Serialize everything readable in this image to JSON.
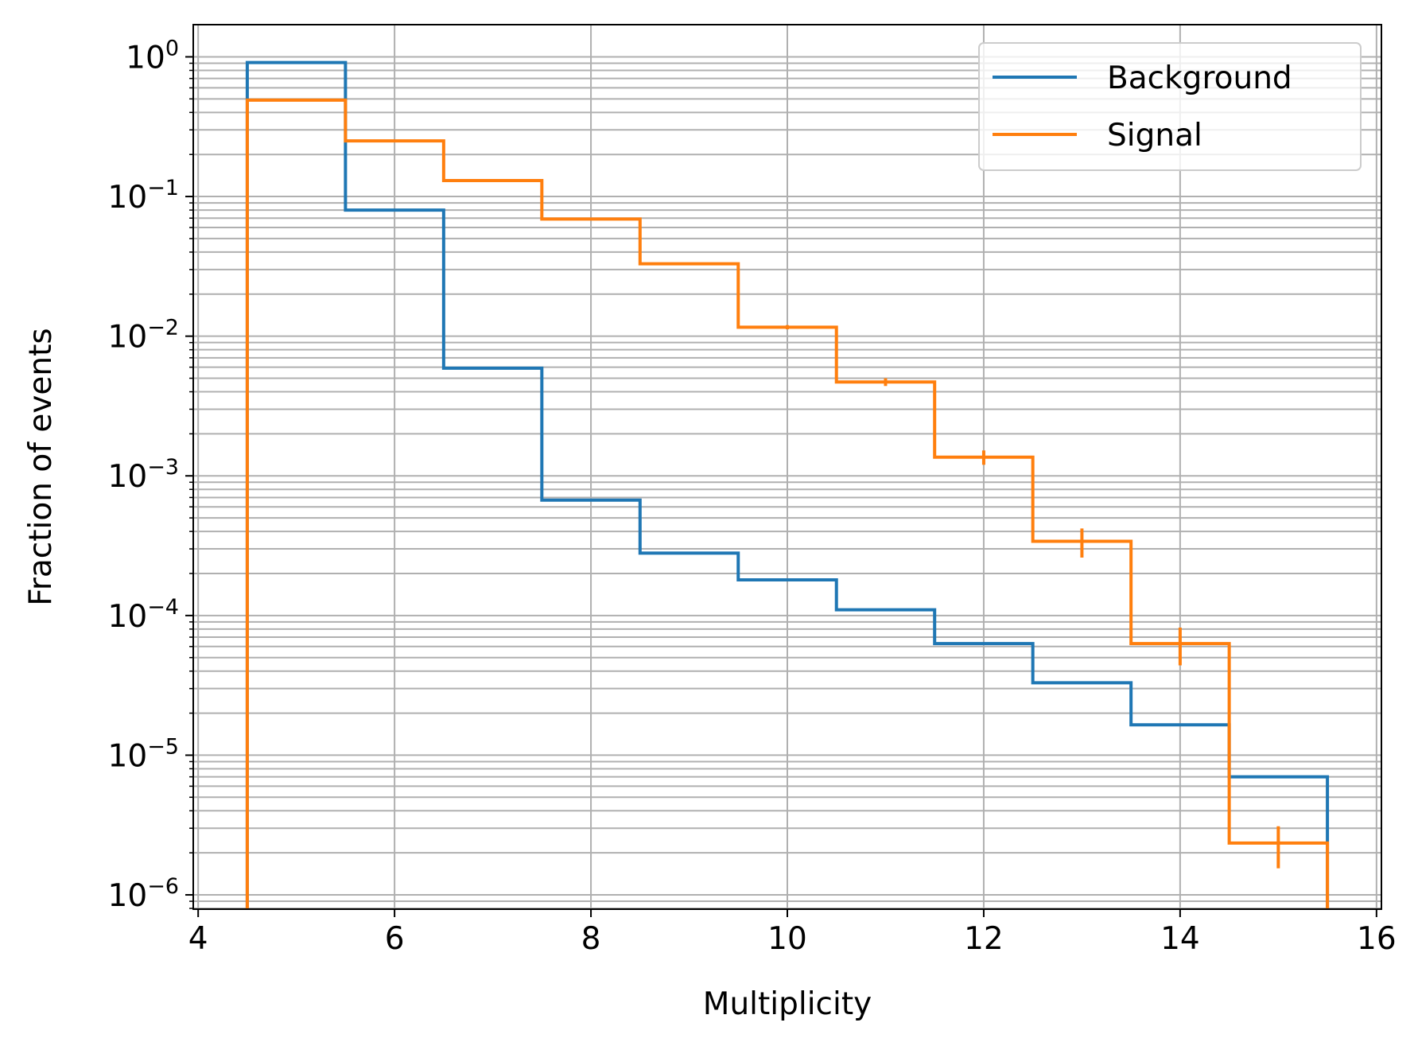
{
  "chart_data": {
    "type": "histogram-step",
    "title": "",
    "xlabel": "Multiplicity",
    "ylabel": "Fraction of events",
    "yscale": "log",
    "xlim": [
      3.95,
      16.05
    ],
    "ylim": [
      7.9e-07,
      1.7
    ],
    "grid": {
      "x": "major",
      "y": "major+minor"
    },
    "legend_position": "top-right",
    "xticks": [
      4,
      6,
      8,
      10,
      12,
      14,
      16
    ],
    "xtick_labels": [
      "4",
      "6",
      "8",
      "10",
      "12",
      "14",
      "16"
    ],
    "yticks": [
      1,
      0.1,
      0.01,
      0.001,
      0.0001,
      1e-05,
      1e-06
    ],
    "ytick_labels": [
      {
        "base": "10",
        "exp": "0"
      },
      {
        "base": "10",
        "exp": "−1"
      },
      {
        "base": "10",
        "exp": "−2"
      },
      {
        "base": "10",
        "exp": "−3"
      },
      {
        "base": "10",
        "exp": "−4"
      },
      {
        "base": "10",
        "exp": "−5"
      },
      {
        "base": "10",
        "exp": "−6"
      }
    ],
    "bin_edges": [
      4.5,
      5.5,
      6.5,
      7.5,
      8.5,
      9.5,
      10.5,
      11.5,
      12.5,
      13.5,
      14.5,
      15.5
    ],
    "bin_centers": [
      5,
      6,
      7,
      8,
      9,
      10,
      11,
      12,
      13,
      14,
      15
    ],
    "series": [
      {
        "name": "Background",
        "color": "#1f77b4",
        "values": [
          0.91,
          0.08,
          0.0059,
          0.00067,
          0.00028,
          0.00018,
          0.00011,
          6.3e-05,
          3.3e-05,
          1.65e-05,
          7e-06
        ]
      },
      {
        "name": "Signal",
        "color": "#ff7f0e",
        "values": [
          0.49,
          0.25,
          0.13,
          0.069,
          0.033,
          0.0116,
          0.0047,
          0.00136,
          0.00034,
          6.3e-05,
          2.35e-06
        ],
        "error_ranges": [
          null,
          null,
          null,
          null,
          null,
          [
            0.0112,
            0.012
          ],
          [
            0.0044,
            0.005
          ],
          [
            0.0012,
            0.00152
          ],
          [
            0.00026,
            0.00042
          ],
          [
            4.4e-05,
            8.2e-05
          ],
          [
            1.55e-06,
            3.1e-06
          ]
        ]
      }
    ]
  }
}
